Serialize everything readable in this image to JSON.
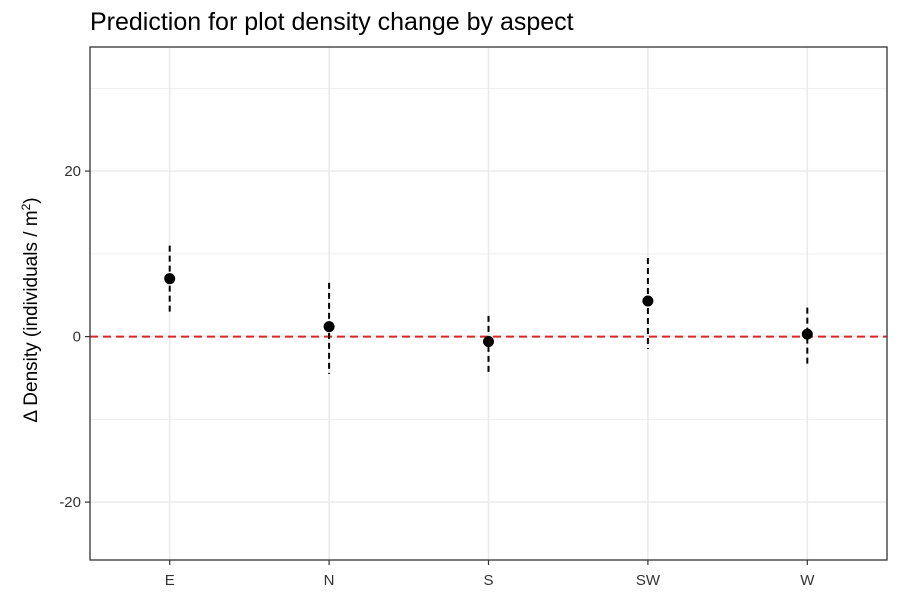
{
  "chart_data": {
    "type": "scatter",
    "title": "Prediction for plot density change by aspect",
    "xlabel": "",
    "ylabel": {
      "prefix": "Δ Density (individuals / m",
      "superscript": "2",
      "suffix": ")"
    },
    "categories": [
      "E",
      "N",
      "S",
      "SW",
      "W"
    ],
    "points": [
      {
        "category": "E",
        "value": 7.0,
        "lower": 3.0,
        "upper": 11.0
      },
      {
        "category": "N",
        "value": 1.2,
        "lower": -4.5,
        "upper": 6.5
      },
      {
        "category": "S",
        "value": -0.6,
        "lower": -4.5,
        "upper": 2.5
      },
      {
        "category": "SW",
        "value": 4.3,
        "lower": -1.5,
        "upper": 9.5
      },
      {
        "category": "W",
        "value": 0.3,
        "lower": -3.5,
        "upper": 3.5
      }
    ],
    "ylim": [
      -27,
      35
    ],
    "y_ticks": [
      -20,
      0,
      20
    ],
    "y_minor_ticks": [
      -30,
      -10,
      10,
      30
    ],
    "reference_line": {
      "y": 0,
      "color": "#d62728",
      "style": "dashed"
    },
    "grid": true,
    "legend": "none",
    "colors": {
      "points": "#000000",
      "error_bars": "#000000",
      "grid": "#ebebeb",
      "panel_border": "#333333"
    }
  }
}
